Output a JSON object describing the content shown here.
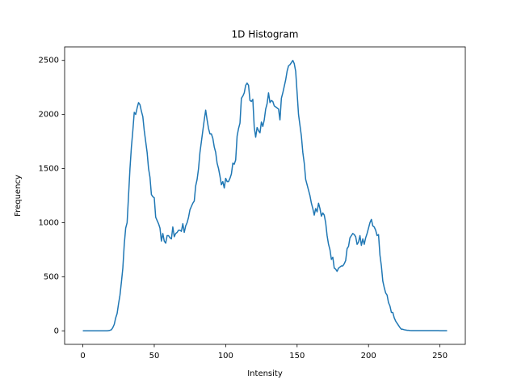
{
  "chart_data": {
    "type": "line",
    "title": "1D Histogram",
    "x_label": "Intensity",
    "y_label": "Frequency",
    "color": "#1f77b4",
    "x": [
      0,
      1,
      2,
      3,
      4,
      5,
      6,
      7,
      8,
      9,
      10,
      11,
      12,
      13,
      14,
      15,
      16,
      17,
      18,
      19,
      20,
      21,
      22,
      23,
      24,
      25,
      26,
      27,
      28,
      29,
      30,
      31,
      32,
      33,
      34,
      35,
      36,
      37,
      38,
      39,
      40,
      41,
      42,
      43,
      44,
      45,
      46,
      47,
      48,
      49,
      50,
      51,
      52,
      53,
      54,
      55,
      56,
      57,
      58,
      59,
      60,
      61,
      62,
      63,
      64,
      65,
      66,
      67,
      68,
      69,
      70,
      71,
      72,
      73,
      74,
      75,
      76,
      77,
      78,
      79,
      80,
      81,
      82,
      83,
      84,
      85,
      86,
      87,
      88,
      89,
      90,
      91,
      92,
      93,
      94,
      95,
      96,
      97,
      98,
      99,
      100,
      101,
      102,
      103,
      104,
      105,
      106,
      107,
      108,
      109,
      110,
      111,
      112,
      113,
      114,
      115,
      116,
      117,
      118,
      119,
      120,
      121,
      122,
      123,
      124,
      125,
      126,
      127,
      128,
      129,
      130,
      131,
      132,
      133,
      134,
      135,
      136,
      137,
      138,
      139,
      140,
      141,
      142,
      143,
      144,
      145,
      146,
      147,
      148,
      149,
      150,
      151,
      152,
      153,
      154,
      155,
      156,
      157,
      158,
      159,
      160,
      161,
      162,
      163,
      164,
      165,
      166,
      167,
      168,
      169,
      170,
      171,
      172,
      173,
      174,
      175,
      176,
      177,
      178,
      179,
      180,
      181,
      182,
      183,
      184,
      185,
      186,
      187,
      188,
      189,
      190,
      191,
      192,
      193,
      194,
      195,
      196,
      197,
      198,
      199,
      200,
      201,
      202,
      203,
      204,
      205,
      206,
      207,
      208,
      209,
      210,
      211,
      212,
      213,
      214,
      215,
      216,
      217,
      218,
      219,
      220,
      221,
      222,
      223,
      224,
      225,
      226,
      227,
      228,
      229,
      230,
      231,
      232,
      233,
      234,
      235,
      236,
      237,
      238,
      239,
      240,
      241,
      242,
      243,
      244,
      245,
      246,
      247,
      248,
      249,
      250,
      251,
      252,
      253,
      254,
      255
    ],
    "values": [
      0,
      0,
      0,
      0,
      0,
      0,
      0,
      0,
      0,
      0,
      0,
      0,
      0,
      0,
      0,
      0,
      0,
      0,
      2,
      5,
      10,
      30,
      60,
      120,
      160,
      250,
      330,
      450,
      580,
      800,
      950,
      1000,
      1250,
      1500,
      1700,
      1850,
      2020,
      2000,
      2060,
      2110,
      2090,
      2030,
      1980,
      1850,
      1750,
      1650,
      1500,
      1420,
      1260,
      1240,
      1230,
      1050,
      1020,
      990,
      950,
      830,
      900,
      830,
      810,
      880,
      880,
      860,
      850,
      960,
      870,
      900,
      910,
      930,
      930,
      920,
      990,
      910,
      970,
      1000,
      1050,
      1120,
      1150,
      1180,
      1200,
      1340,
      1400,
      1500,
      1650,
      1750,
      1850,
      1950,
      2040,
      1950,
      1870,
      1820,
      1820,
      1780,
      1700,
      1650,
      1550,
      1500,
      1430,
      1350,
      1380,
      1320,
      1410,
      1380,
      1380,
      1410,
      1450,
      1550,
      1540,
      1580,
      1800,
      1870,
      1920,
      2150,
      2170,
      2200,
      2270,
      2290,
      2270,
      2130,
      2120,
      2140,
      1880,
      1790,
      1880,
      1850,
      1830,
      1930,
      1890,
      1950,
      2050,
      2100,
      2200,
      2110,
      2130,
      2120,
      2080,
      2070,
      2060,
      2050,
      1950,
      2150,
      2200,
      2260,
      2320,
      2400,
      2450,
      2460,
      2480,
      2500,
      2470,
      2400,
      2200,
      2000,
      1900,
      1800,
      1650,
      1550,
      1400,
      1350,
      1300,
      1250,
      1180,
      1130,
      1070,
      1130,
      1100,
      1180,
      1130,
      1060,
      1090,
      1070,
      1000,
      880,
      800,
      750,
      660,
      680,
      580,
      570,
      550,
      580,
      590,
      600,
      600,
      620,
      650,
      760,
      780,
      860,
      880,
      900,
      890,
      870,
      800,
      820,
      880,
      790,
      850,
      800,
      860,
      900,
      950,
      1000,
      1030,
      970,
      960,
      930,
      880,
      890,
      700,
      600,
      460,
      400,
      350,
      330,
      260,
      230,
      170,
      170,
      120,
      90,
      70,
      50,
      30,
      15,
      15,
      10,
      8,
      5,
      5,
      3,
      2,
      2,
      2,
      2,
      2,
      2,
      2,
      2,
      2,
      2,
      2,
      2,
      2,
      2,
      2,
      2,
      2,
      2,
      2,
      2,
      1,
      1,
      1,
      1,
      1,
      1
    ],
    "xlim": [
      -12.75,
      267.75
    ],
    "ylim": [
      -125,
      2625
    ],
    "xticks": [
      0,
      50,
      100,
      150,
      200,
      250
    ],
    "yticks": [
      0,
      500,
      1000,
      1500,
      2000,
      2500
    ]
  }
}
